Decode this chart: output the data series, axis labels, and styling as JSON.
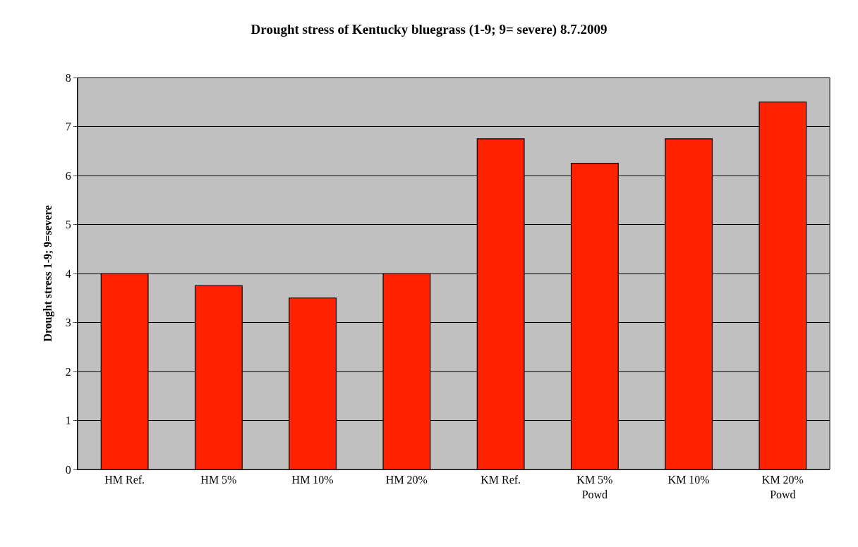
{
  "chart_data": {
    "type": "bar",
    "title": "Drought stress of Kentucky bluegrass (1-9; 9= severe) 8.7.2009",
    "ylabel": "Drought stress 1-9; 9=severe",
    "categories": [
      "HM Ref.",
      "HM 5%",
      "HM 10%",
      "HM 20%",
      "KM Ref.",
      "KM 5%\nPowd",
      "KM 10%",
      "KM 20%\nPowd"
    ],
    "values": [
      4,
      3.75,
      3.5,
      4,
      6.75,
      6.25,
      6.75,
      7.5
    ],
    "color": "#ff2200",
    "ylim": [
      0,
      8
    ],
    "yticks": [
      0,
      1,
      2,
      3,
      4,
      5,
      6,
      7,
      8
    ],
    "grid": "y"
  }
}
